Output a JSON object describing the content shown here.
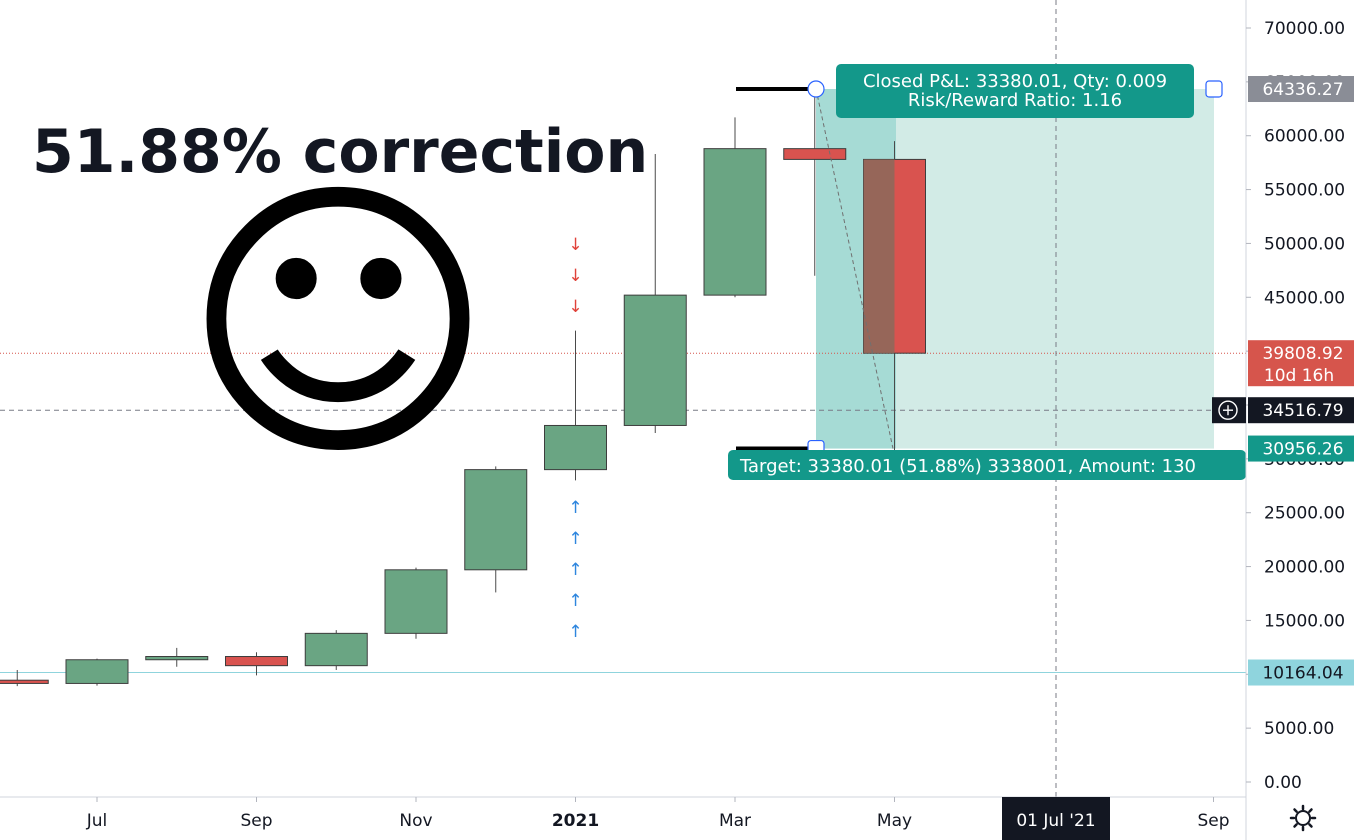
{
  "headline": "51.88% correction",
  "smiley": "☺",
  "icons": {
    "settings": "gear-icon",
    "crosshair": "crosshair-plus-icon"
  },
  "colors": {
    "up": "#6aa583",
    "down": "#d9534f",
    "profit_zone": "#d2ebe6",
    "entry_zone": "#a6dbd5",
    "label_teal": "#13988a",
    "tag_gray": "#8a8d96",
    "tag_red": "#d6554c",
    "tag_dark": "#131722",
    "tag_cyan": "#8fd4dd"
  },
  "position_tool": {
    "top_label_line1": "Closed P&L: 33380.01, Qty: 0.009",
    "top_label_line2": "Risk/Reward Ratio: 1.16",
    "bottom_label": "Target: 33380.01 (51.88%) 3338001, Amount: 130",
    "stop_price": 64336.27,
    "entry_price": 30956.26
  },
  "price_tags": [
    {
      "value": 64336.27,
      "text": "64336.27",
      "style": "gray"
    },
    {
      "value": 39808.92,
      "text": "39808.92",
      "sub": "10d 16h",
      "style": "red"
    },
    {
      "value": 34516.79,
      "text": "34516.79",
      "style": "dark"
    },
    {
      "value": 30956.26,
      "text": "30956.26",
      "style": "teal"
    },
    {
      "value": 10164.04,
      "text": "10164.04",
      "style": "cyan"
    }
  ],
  "crosshair_time_label": "01 Jul '21",
  "markers": {
    "down_arrows": [
      "↓",
      "↓",
      "↓"
    ],
    "up_arrows": [
      "↑",
      "↑",
      "↑",
      "↑",
      "↑"
    ]
  },
  "chart_data": {
    "type": "candlestick",
    "interval": "monthly",
    "ylim": [
      -1500,
      73500
    ],
    "y_ticks": [
      0,
      5000,
      10000,
      15000,
      20000,
      25000,
      30000,
      35000,
      40000,
      45000,
      50000,
      55000,
      60000,
      65000,
      70000
    ],
    "y_tick_labels": [
      "0.00",
      "5000.00",
      "10000.00",
      "15000.00",
      "20000.00",
      "25000.00",
      "30000.00",
      "35000.00",
      "40000.00",
      "45000.00",
      "50000.00",
      "55000.00",
      "60000.00",
      "65000.00",
      "70000.00"
    ],
    "x_labels": [
      {
        "month": "2020-07",
        "label": "Jul"
      },
      {
        "month": "2020-09",
        "label": "Sep"
      },
      {
        "month": "2020-11",
        "label": "Nov"
      },
      {
        "month": "2021-01",
        "label": "2021"
      },
      {
        "month": "2021-03",
        "label": "Mar"
      },
      {
        "month": "2021-05",
        "label": "May"
      },
      {
        "month": "2021-09",
        "label": "Sep"
      }
    ],
    "candles": [
      {
        "month": "2020-06",
        "open": 9450,
        "high": 10400,
        "low": 8900,
        "close": 9150
      },
      {
        "month": "2020-07",
        "open": 9150,
        "high": 11450,
        "low": 8950,
        "close": 11350
      },
      {
        "month": "2020-08",
        "open": 11350,
        "high": 12450,
        "low": 10700,
        "close": 11650
      },
      {
        "month": "2020-09",
        "open": 11650,
        "high": 12050,
        "low": 9900,
        "close": 10800
      },
      {
        "month": "2020-10",
        "open": 10800,
        "high": 14100,
        "low": 10400,
        "close": 13800
      },
      {
        "month": "2020-11",
        "open": 13800,
        "high": 19900,
        "low": 13300,
        "close": 19700
      },
      {
        "month": "2020-12",
        "open": 19700,
        "high": 29300,
        "low": 17600,
        "close": 29000
      },
      {
        "month": "2021-01",
        "open": 29000,
        "high": 41900,
        "low": 28000,
        "close": 33100
      },
      {
        "month": "2021-02",
        "open": 33100,
        "high": 58300,
        "low": 32400,
        "close": 45200
      },
      {
        "month": "2021-03",
        "open": 45200,
        "high": 61700,
        "low": 45000,
        "close": 58800
      },
      {
        "month": "2021-04",
        "open": 58800,
        "high": 64800,
        "low": 47000,
        "close": 57800
      },
      {
        "month": "2021-05",
        "open": 57800,
        "high": 59500,
        "low": 30000,
        "close": 39809
      }
    ]
  }
}
